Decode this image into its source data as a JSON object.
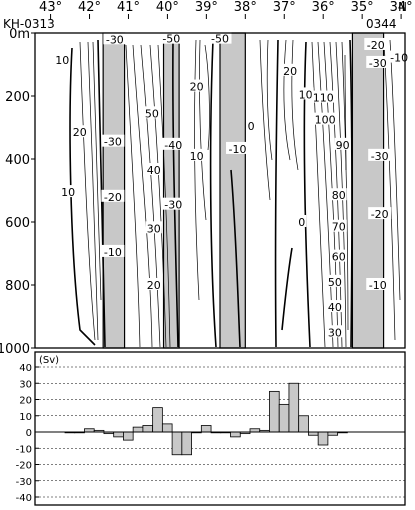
{
  "chart_data": [
    {
      "type": "contour",
      "section_start_label": "KH-0313",
      "section_end_label": "0344",
      "xunit": "N",
      "x_ticks": [
        {
          "lat": 43,
          "label": "43°"
        },
        {
          "lat": 42,
          "label": "42°"
        },
        {
          "lat": 41,
          "label": "41°"
        },
        {
          "lat": 40,
          "label": "40°"
        },
        {
          "lat": 39,
          "label": "39°"
        },
        {
          "lat": 38,
          "label": "38°"
        },
        {
          "lat": 37,
          "label": "37°"
        },
        {
          "lat": 36,
          "label": "36°"
        },
        {
          "lat": 35,
          "label": "35°"
        },
        {
          "lat": 34,
          "label": "34°"
        }
      ],
      "ylim": [
        0,
        1000
      ],
      "y_ticks": [
        {
          "value": 0,
          "label": "0m"
        },
        {
          "value": 200,
          "label": "200"
        },
        {
          "value": 400,
          "label": "400"
        },
        {
          "value": 600,
          "label": "600"
        },
        {
          "value": 800,
          "label": "800"
        },
        {
          "value": 1000,
          "label": "1000"
        }
      ],
      "xlim_lat": [
        43.4,
        33.9
      ],
      "shaded_bands_lat": [
        [
          41.65,
          41.1
        ],
        [
          40.1,
          39.7
        ],
        [
          38.65,
          38.0
        ],
        [
          35.25,
          34.45
        ]
      ],
      "contour_labels": [
        {
          "text": "10",
          "lat": 42.7,
          "depth": 85
        },
        {
          "text": "-30",
          "lat": 41.35,
          "depth": 20
        },
        {
          "text": "20",
          "lat": 42.25,
          "depth": 315
        },
        {
          "text": "-30",
          "lat": 41.4,
          "depth": 345
        },
        {
          "text": "10",
          "lat": 42.55,
          "depth": 505
        },
        {
          "text": "-20",
          "lat": 41.4,
          "depth": 520
        },
        {
          "text": "-10",
          "lat": 41.4,
          "depth": 695
        },
        {
          "text": "-50",
          "lat": 39.9,
          "depth": 18
        },
        {
          "text": "50",
          "lat": 40.4,
          "depth": 255
        },
        {
          "text": "-40",
          "lat": 39.85,
          "depth": 355
        },
        {
          "text": "40",
          "lat": 40.35,
          "depth": 435
        },
        {
          "text": "-30",
          "lat": 39.85,
          "depth": 545
        },
        {
          "text": "30",
          "lat": 40.35,
          "depth": 620
        },
        {
          "text": "20",
          "lat": 40.35,
          "depth": 800
        },
        {
          "text": "-50",
          "lat": 38.65,
          "depth": 18
        },
        {
          "text": "20",
          "lat": 39.25,
          "depth": 170
        },
        {
          "text": "0",
          "lat": 37.85,
          "depth": 295
        },
        {
          "text": "10",
          "lat": 39.25,
          "depth": 390
        },
        {
          "text": "-10",
          "lat": 38.2,
          "depth": 368
        },
        {
          "text": "20",
          "lat": 36.85,
          "depth": 120
        },
        {
          "text": "0",
          "lat": 36.55,
          "depth": 600
        },
        {
          "text": "10",
          "lat": 36.45,
          "depth": 195
        },
        {
          "text": "110",
          "lat": 36.0,
          "depth": 205
        },
        {
          "text": "100",
          "lat": 35.95,
          "depth": 275
        },
        {
          "text": "90",
          "lat": 35.5,
          "depth": 355
        },
        {
          "text": "80",
          "lat": 35.6,
          "depth": 515
        },
        {
          "text": "70",
          "lat": 35.6,
          "depth": 615
        },
        {
          "text": "60",
          "lat": 35.6,
          "depth": 710
        },
        {
          "text": "50",
          "lat": 35.7,
          "depth": 790
        },
        {
          "text": "40",
          "lat": 35.7,
          "depth": 870
        },
        {
          "text": "30",
          "lat": 35.7,
          "depth": 950
        },
        {
          "text": "-20",
          "lat": 34.65,
          "depth": 38
        },
        {
          "text": "-30",
          "lat": 34.6,
          "depth": 95
        },
        {
          "text": "-10",
          "lat": 34.05,
          "depth": 78
        },
        {
          "text": "-30",
          "lat": 34.55,
          "depth": 390
        },
        {
          "text": "-20",
          "lat": 34.55,
          "depth": 575
        },
        {
          "text": "-10",
          "lat": 34.6,
          "depth": 800
        }
      ]
    },
    {
      "type": "bar",
      "ylabel": "(Sv)",
      "ylim": [
        -40,
        40
      ],
      "y_ticks": [
        40,
        30,
        20,
        10,
        0,
        -10,
        -20,
        -30,
        -40
      ],
      "grid": true,
      "lat_start": 43.4,
      "lat_step": 0.25,
      "values": [
        0,
        0,
        2,
        1,
        -1,
        -3,
        -5,
        3,
        4,
        15,
        5,
        -14,
        -14,
        0,
        4,
        0,
        0,
        -3,
        -1,
        2,
        1,
        25,
        17,
        30,
        10,
        -2,
        -8,
        -2,
        0
      ]
    }
  ]
}
